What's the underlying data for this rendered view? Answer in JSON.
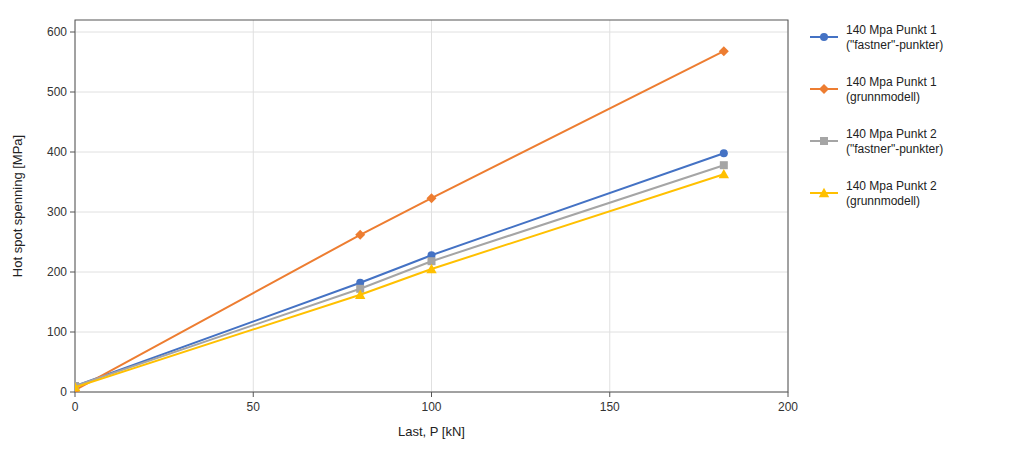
{
  "chart_data": {
    "type": "line",
    "xlabel": "Last, P [kN]",
    "ylabel": "Hot spot spenning [MPa]",
    "x": [
      0,
      80,
      100,
      182
    ],
    "series": [
      {
        "name": "140 Mpa Punkt 1\n(\"fastner\"-punkter)",
        "color": "#4472C4",
        "marker": "circle",
        "values": [
          10,
          182,
          228,
          398
        ]
      },
      {
        "name": "140 Mpa Punkt 1\n(grunnmodell)",
        "color": "#ED7D31",
        "marker": "diamond",
        "values": [
          3,
          262,
          323,
          568
        ]
      },
      {
        "name": "140 Mpa Punkt 2\n(\"fastner\"-punkter)",
        "color": "#A5A5A5",
        "marker": "square",
        "values": [
          10,
          172,
          218,
          378
        ]
      },
      {
        "name": "140 Mpa Punkt 2\n(grunnmodell)",
        "color": "#FFC000",
        "marker": "triangle",
        "values": [
          8,
          162,
          205,
          363
        ]
      }
    ],
    "xlim": [
      0,
      200
    ],
    "ylim": [
      0,
      620
    ],
    "xticks": [
      0,
      50,
      100,
      150,
      200
    ],
    "yticks": [
      0,
      100,
      200,
      300,
      400,
      500,
      600
    ],
    "grid": true,
    "legend": "right"
  }
}
